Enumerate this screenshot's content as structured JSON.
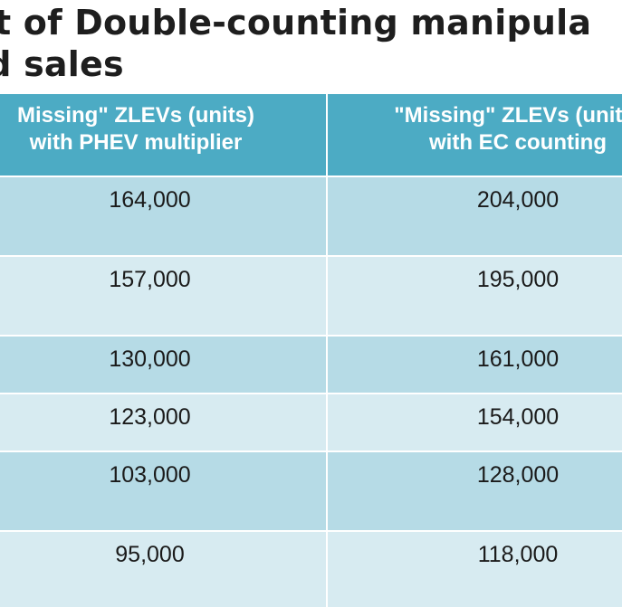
{
  "title": {
    "line1": "t of Double-counting manipula",
    "line2": "nd sales"
  },
  "table": {
    "headers": [
      {
        "line1": "Missing\" ZLEVs (units)",
        "line2": "with PHEV multiplier"
      },
      {
        "line1": "\"Missing\" ZLEVs (units)",
        "line2": "with EC counting"
      }
    ],
    "rows": [
      {
        "col1": "164,000",
        "col2": "204,000"
      },
      {
        "col1": "157,000",
        "col2": "195,000"
      },
      {
        "col1": "130,000",
        "col2": "161,000"
      },
      {
        "col1": "123,000",
        "col2": "154,000"
      },
      {
        "col1": "103,000",
        "col2": "128,000"
      },
      {
        "col1": "95,000",
        "col2": "118,000"
      }
    ]
  },
  "colors": {
    "header_bg": "#4cabc4",
    "row_dark": "#b6dbe6",
    "row_light": "#d7ebf1"
  }
}
